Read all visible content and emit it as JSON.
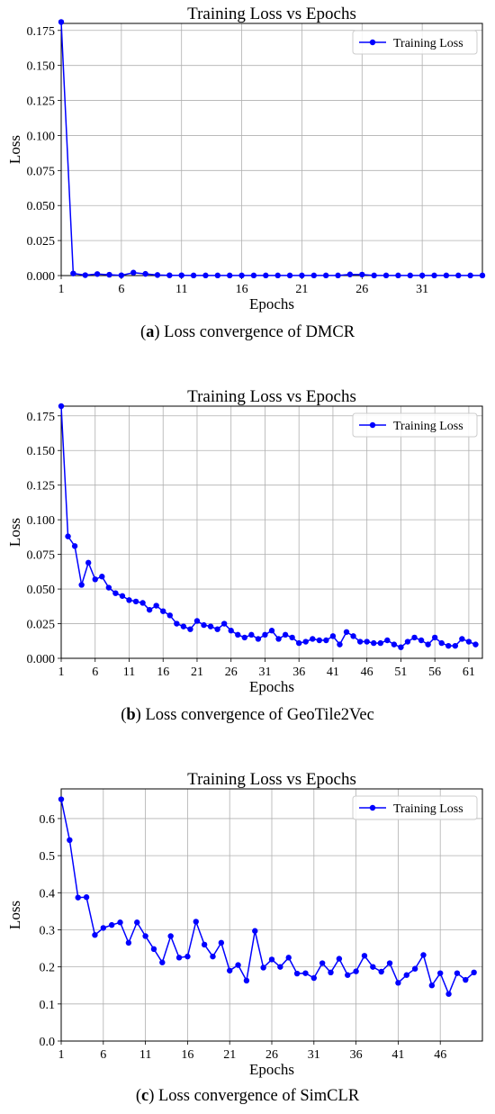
{
  "chart_data": [
    {
      "type": "line",
      "title": "Training Loss vs Epochs",
      "xlabel": "Epochs",
      "ylabel": "Loss",
      "xlim": [
        1,
        36
      ],
      "ylim": [
        0,
        0.18
      ],
      "xticks": [
        1,
        6,
        11,
        16,
        21,
        26,
        31
      ],
      "yticks": [
        "0.000",
        "0.025",
        "0.050",
        "0.075",
        "0.100",
        "0.125",
        "0.150",
        "0.175"
      ],
      "grid": true,
      "legend_position": "top-right",
      "color": "#0000ff",
      "series": [
        {
          "name": "Training Loss",
          "x": [
            1,
            2,
            3,
            4,
            5,
            6,
            7,
            8,
            9,
            10,
            11,
            12,
            13,
            14,
            15,
            16,
            17,
            18,
            19,
            20,
            21,
            22,
            23,
            24,
            25,
            26,
            27,
            28,
            29,
            30,
            31,
            32,
            33,
            34,
            35,
            36
          ],
          "values": [
            0.181,
            0.0015,
            0.0003,
            0.0011,
            0.0006,
            0.0002,
            0.0021,
            0.0012,
            0.0004,
            0.0002,
            0.0002,
            0.0001,
            0.0001,
            0.0001,
            0.0001,
            0.0001,
            0.0001,
            0.0001,
            0.0001,
            0.0001,
            0.0001,
            0.0001,
            0.0001,
            0.0001,
            0.0008,
            0.0007,
            0.0001,
            0.0001,
            0.0001,
            0.0001,
            0.0001,
            0.0001,
            0.0001,
            0.0001,
            0.0001,
            0.0001
          ]
        }
      ]
    },
    {
      "type": "line",
      "title": "Training Loss vs Epochs",
      "xlabel": "Epochs",
      "ylabel": "Loss",
      "xlim": [
        1,
        63
      ],
      "ylim": [
        0,
        0.182
      ],
      "xticks": [
        1,
        6,
        11,
        16,
        21,
        26,
        31,
        36,
        41,
        46,
        51,
        56,
        61
      ],
      "yticks": [
        "0.000",
        "0.025",
        "0.050",
        "0.075",
        "0.100",
        "0.125",
        "0.150",
        "0.175"
      ],
      "grid": true,
      "legend_position": "top-right",
      "color": "#0000ff",
      "series": [
        {
          "name": "Training Loss",
          "x": [
            1,
            2,
            3,
            4,
            5,
            6,
            7,
            8,
            9,
            10,
            11,
            12,
            13,
            14,
            15,
            16,
            17,
            18,
            19,
            20,
            21,
            22,
            23,
            24,
            25,
            26,
            27,
            28,
            29,
            30,
            31,
            32,
            33,
            34,
            35,
            36,
            37,
            38,
            39,
            40,
            41,
            42,
            43,
            44,
            45,
            46,
            47,
            48,
            49,
            50,
            51,
            52,
            53,
            54,
            55,
            56,
            57,
            58,
            59,
            60,
            61,
            62
          ],
          "values": [
            0.182,
            0.088,
            0.081,
            0.053,
            0.069,
            0.057,
            0.059,
            0.051,
            0.047,
            0.045,
            0.042,
            0.041,
            0.04,
            0.035,
            0.038,
            0.034,
            0.031,
            0.025,
            0.023,
            0.021,
            0.027,
            0.024,
            0.023,
            0.021,
            0.025,
            0.02,
            0.017,
            0.015,
            0.017,
            0.014,
            0.017,
            0.02,
            0.014,
            0.017,
            0.015,
            0.011,
            0.012,
            0.014,
            0.013,
            0.013,
            0.016,
            0.01,
            0.019,
            0.016,
            0.012,
            0.012,
            0.011,
            0.011,
            0.013,
            0.01,
            0.008,
            0.012,
            0.015,
            0.013,
            0.01,
            0.015,
            0.011,
            0.009,
            0.009,
            0.014,
            0.012,
            0.01
          ]
        }
      ]
    },
    {
      "type": "line",
      "title": "Training Loss vs Epochs",
      "xlabel": "Epochs",
      "ylabel": "Loss",
      "xlim": [
        1,
        51
      ],
      "ylim": [
        0,
        0.68
      ],
      "xticks": [
        1,
        6,
        11,
        16,
        21,
        26,
        31,
        36,
        41,
        46
      ],
      "yticks": [
        "0.0",
        "0.1",
        "0.2",
        "0.3",
        "0.4",
        "0.5",
        "0.6"
      ],
      "grid": true,
      "legend_position": "top-right",
      "color": "#0000ff",
      "series": [
        {
          "name": "Training Loss",
          "x": [
            1,
            2,
            3,
            4,
            5,
            6,
            7,
            8,
            9,
            10,
            11,
            12,
            13,
            14,
            15,
            16,
            17,
            18,
            19,
            20,
            21,
            22,
            23,
            24,
            25,
            26,
            27,
            28,
            29,
            30,
            31,
            32,
            33,
            34,
            35,
            36,
            37,
            38,
            39,
            40,
            41,
            42,
            43,
            44,
            45,
            46,
            47,
            48,
            49,
            50
          ],
          "values": [
            0.652,
            0.542,
            0.387,
            0.388,
            0.286,
            0.305,
            0.313,
            0.32,
            0.265,
            0.32,
            0.283,
            0.248,
            0.212,
            0.283,
            0.225,
            0.228,
            0.322,
            0.26,
            0.228,
            0.265,
            0.19,
            0.205,
            0.163,
            0.297,
            0.198,
            0.22,
            0.2,
            0.225,
            0.182,
            0.183,
            0.17,
            0.21,
            0.185,
            0.222,
            0.178,
            0.188,
            0.23,
            0.2,
            0.187,
            0.21,
            0.157,
            0.178,
            0.195,
            0.232,
            0.15,
            0.183,
            0.127,
            0.183,
            0.165,
            0.185
          ]
        }
      ]
    }
  ],
  "captions": [
    {
      "letter": "a",
      "text": "Loss convergence of DMCR"
    },
    {
      "letter": "b",
      "text": "Loss convergence of GeoTile2Vec"
    },
    {
      "letter": "c",
      "text": "Loss convergence of SimCLR"
    }
  ]
}
